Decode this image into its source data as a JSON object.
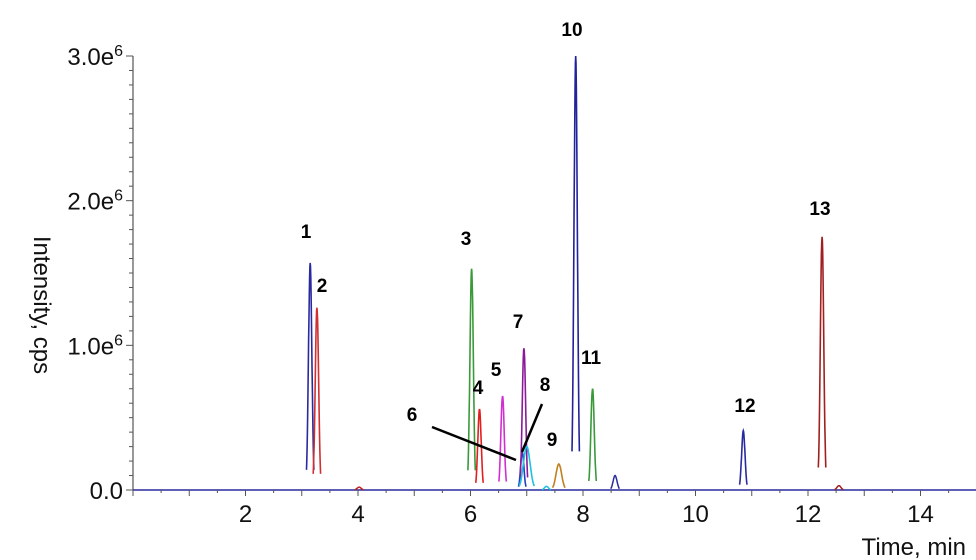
{
  "chart_data": {
    "type": "line",
    "title": "",
    "xlabel": "Time, min",
    "ylabel": "Intensity, cps",
    "xlim": [
      0,
      15
    ],
    "ylim": [
      0,
      3000000
    ],
    "x_ticks": [
      2,
      4,
      6,
      8,
      10,
      12,
      14
    ],
    "x_tick_labels": [
      "2",
      "4",
      "6",
      "8",
      "10",
      "12",
      "14"
    ],
    "y_ticks": [
      0,
      1000000,
      2000000,
      3000000
    ],
    "y_tick_labels": [
      {
        "mantissa": "0.0",
        "exponent": ""
      },
      {
        "mantissa": "1.0e",
        "exponent": "6"
      },
      {
        "mantissa": "2.0e",
        "exponent": "6"
      },
      {
        "mantissa": "3.0e",
        "exponent": "6"
      }
    ],
    "grid": false,
    "peaks": [
      {
        "label": "1",
        "rt": 3.15,
        "height": 1570000,
        "color": "#2a2aa0"
      },
      {
        "label": "2",
        "rt": 3.27,
        "height": 1260000,
        "color": "#d03030"
      },
      {
        "label": "3",
        "rt": 6.02,
        "height": 1530000,
        "color": "#3a9a3a"
      },
      {
        "label": "4",
        "rt": 6.16,
        "height": 560000,
        "color": "#e02020"
      },
      {
        "label": "5",
        "rt": 6.57,
        "height": 650000,
        "color": "#d030d0"
      },
      {
        "label": "6",
        "rt": 6.92,
        "height": 260000,
        "color": "#2040c0"
      },
      {
        "label": "7",
        "rt": 6.95,
        "height": 980000,
        "color": "#8a1a9a"
      },
      {
        "label": "8",
        "rt": 7.0,
        "height": 300000,
        "color": "#20c0e0"
      },
      {
        "label": "9",
        "rt": 7.57,
        "height": 180000,
        "color": "#c08020"
      },
      {
        "label": "10",
        "rt": 7.87,
        "height": 3000000,
        "color": "#22229a"
      },
      {
        "label": "11",
        "rt": 8.17,
        "height": 700000,
        "color": "#3a9a3a"
      },
      {
        "label": "12",
        "rt": 10.85,
        "height": 410000,
        "color": "#2a2aa0"
      },
      {
        "label": "13",
        "rt": 12.25,
        "height": 1750000,
        "color": "#a02020"
      }
    ],
    "minor_peaks": [
      {
        "rt": 4.02,
        "height": 20000,
        "color": "#c02020"
      },
      {
        "rt": 7.35,
        "height": 25000,
        "color": "#20c0e0"
      },
      {
        "rt": 8.57,
        "height": 100000,
        "color": "#2a2aa0"
      },
      {
        "rt": 12.55,
        "height": 30000,
        "color": "#a02020"
      }
    ]
  }
}
